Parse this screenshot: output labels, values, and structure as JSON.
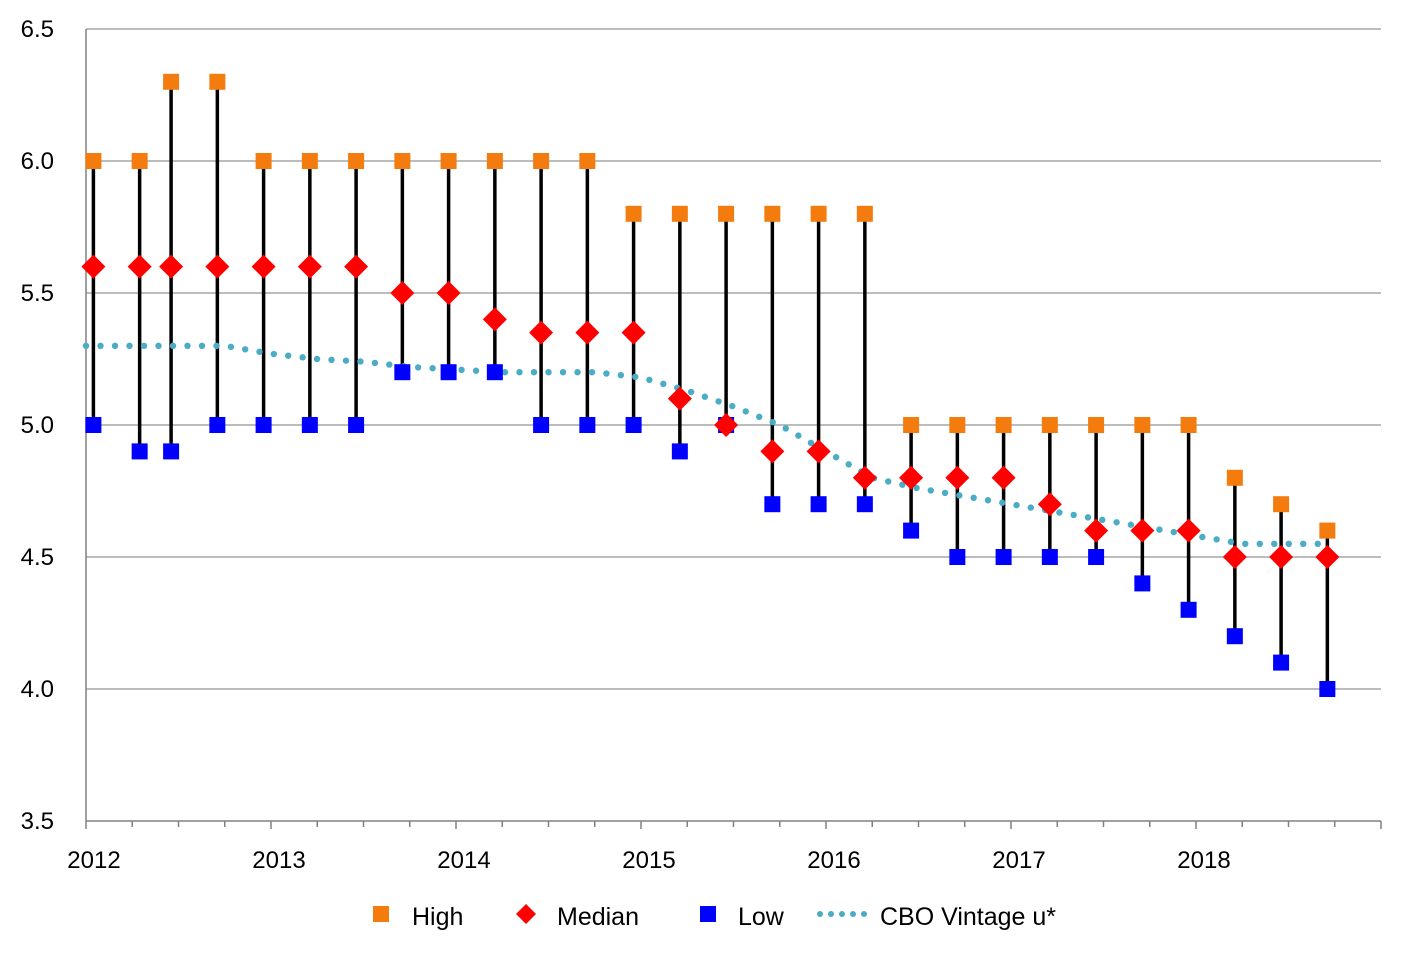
{
  "chart_data": {
    "type": "scatter",
    "title": "",
    "xlabel": "",
    "ylabel": "",
    "ylim": [
      3.5,
      6.5
    ],
    "yticks": [
      "3.5",
      "4.0",
      "4.5",
      "5.0",
      "5.5",
      "6.0",
      "6.5"
    ],
    "xlim": [
      2012.0,
      2019.0
    ],
    "xticks": [
      "2012",
      "2013",
      "2014",
      "2015",
      "2016",
      "2017",
      "2018"
    ],
    "grid": "horizontal",
    "legend_position": "bottom",
    "colors": {
      "high": "#F47C0F",
      "median": "#FF0000",
      "low": "#0000FF",
      "cbo": "#4BACC6",
      "range": "#000000",
      "grid": "#A6A6A6",
      "axis": "#808080"
    },
    "x": [
      2012.04,
      2012.29,
      2012.46,
      2012.71,
      2012.96,
      2013.21,
      2013.46,
      2013.71,
      2013.96,
      2014.21,
      2014.46,
      2014.71,
      2014.96,
      2015.21,
      2015.46,
      2015.71,
      2015.96,
      2016.21,
      2016.46,
      2016.71,
      2016.96,
      2017.21,
      2017.46,
      2017.71,
      2017.96,
      2018.21,
      2018.46,
      2018.71
    ],
    "series": [
      {
        "name": "High",
        "marker": "square",
        "values": [
          6.0,
          6.0,
          6.3,
          6.3,
          6.0,
          6.0,
          6.0,
          6.0,
          6.0,
          6.0,
          6.0,
          6.0,
          5.8,
          5.8,
          5.8,
          5.8,
          5.8,
          5.8,
          5.0,
          5.0,
          5.0,
          5.0,
          5.0,
          5.0,
          5.0,
          4.8,
          4.7,
          4.6
        ]
      },
      {
        "name": "Median",
        "marker": "diamond",
        "values": [
          5.6,
          5.6,
          5.6,
          5.6,
          5.6,
          5.6,
          5.6,
          5.5,
          5.5,
          5.4,
          5.35,
          5.35,
          5.35,
          5.1,
          5.0,
          4.9,
          4.9,
          4.8,
          4.8,
          4.8,
          4.8,
          4.7,
          4.6,
          4.6,
          4.6,
          4.5,
          4.5,
          4.5
        ]
      },
      {
        "name": "Low",
        "marker": "square",
        "values": [
          5.0,
          4.9,
          4.9,
          5.0,
          5.0,
          5.0,
          5.0,
          5.2,
          5.2,
          5.2,
          5.0,
          5.0,
          5.0,
          4.9,
          5.0,
          4.7,
          4.7,
          4.7,
          4.6,
          4.5,
          4.5,
          4.5,
          4.5,
          4.4,
          4.3,
          4.2,
          4.1,
          4.0
        ]
      },
      {
        "name": "CBO Vintage u*",
        "marker": "dotted-line",
        "x": [
          2012.0,
          2012.25,
          2012.5,
          2012.75,
          2013.0,
          2013.25,
          2013.5,
          2013.75,
          2014.0,
          2014.25,
          2014.5,
          2014.75,
          2015.0,
          2015.25,
          2015.5,
          2015.75,
          2016.0,
          2016.25,
          2016.5,
          2016.75,
          2017.0,
          2017.25,
          2017.5,
          2017.75,
          2018.0,
          2018.25,
          2018.5,
          2018.72
        ],
        "values": [
          5.3,
          5.3,
          5.3,
          5.3,
          5.27,
          5.25,
          5.24,
          5.22,
          5.21,
          5.2,
          5.2,
          5.2,
          5.18,
          5.13,
          5.07,
          5.0,
          4.9,
          4.8,
          4.76,
          4.73,
          4.7,
          4.67,
          4.64,
          4.61,
          4.58,
          4.55,
          4.55,
          4.55
        ]
      }
    ],
    "legend": [
      "High",
      "Median",
      "Low",
      "CBO Vintage u*"
    ]
  }
}
